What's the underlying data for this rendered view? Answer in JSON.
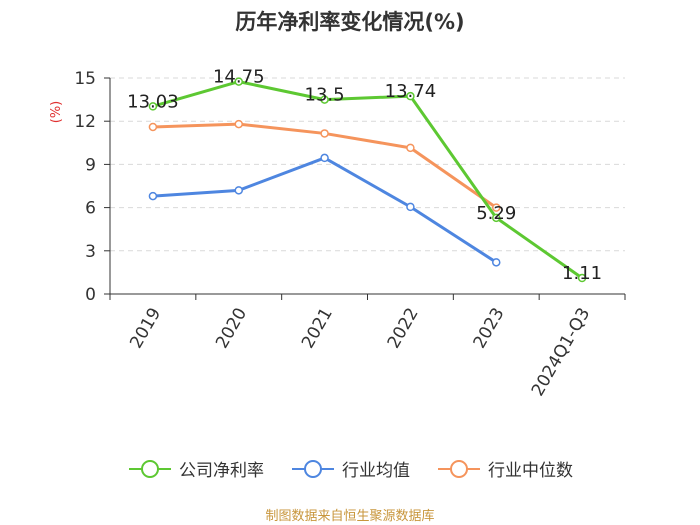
{
  "title": "历年净利率变化情况(%)",
  "source": "制图数据来自恒生聚源数据库",
  "chart_data": {
    "type": "line",
    "title": "历年净利率变化情况(%)",
    "ylabel": "(%)",
    "ylim": [
      0,
      15
    ],
    "yticks": [
      0,
      3,
      6,
      9,
      12,
      15
    ],
    "grid": "horizontal dashed",
    "legend_position": "bottom",
    "categories": [
      "2019",
      "2020",
      "2021",
      "2022",
      "2023",
      "2024Q1-Q3"
    ],
    "series": [
      {
        "name": "公司净利率",
        "color": "#5dc832",
        "values": [
          13.03,
          14.75,
          13.5,
          13.74,
          5.29,
          1.11
        ],
        "labels": [
          "13.03",
          "14.75",
          "13.5",
          "13.74",
          "5.29",
          "1.11"
        ]
      },
      {
        "name": "行业均值",
        "color": "#4e86e0",
        "values": [
          6.8,
          7.2,
          9.45,
          6.05,
          2.2,
          null
        ]
      },
      {
        "name": "行业中位数",
        "color": "#f5945c",
        "values": [
          11.6,
          11.8,
          11.15,
          10.15,
          6.0,
          null
        ]
      }
    ]
  }
}
